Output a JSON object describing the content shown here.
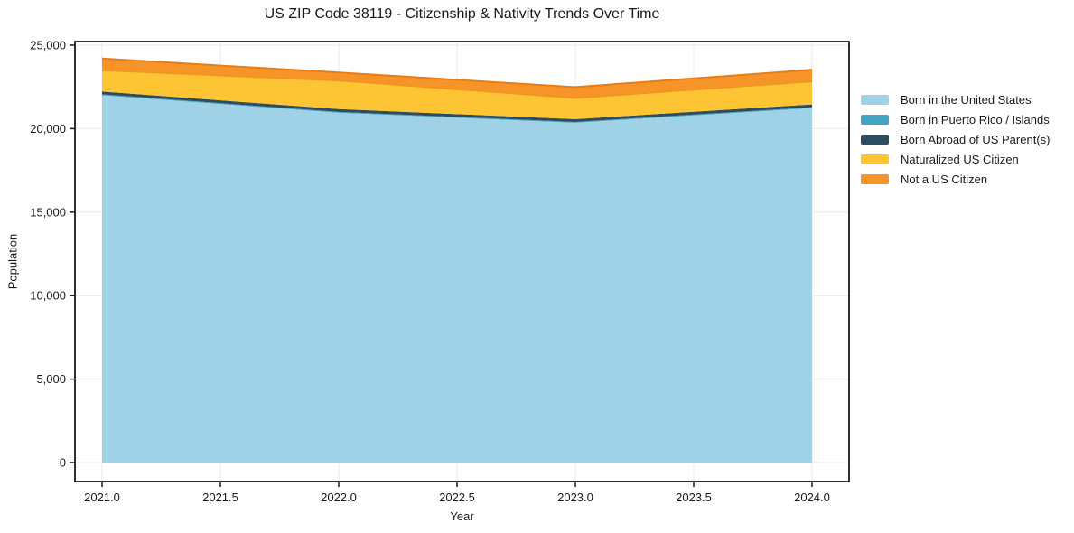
{
  "title": "US ZIP Code 38119 - Citizenship & Nativity Trends Over Time",
  "chart_data": {
    "type": "area",
    "stacked": true,
    "title": "US ZIP Code 38119 - Citizenship & Nativity Trends Over Time",
    "xlabel": "Year",
    "ylabel": "Population",
    "x": [
      2021,
      2022,
      2023,
      2024
    ],
    "x_tick_values": [
      2021.0,
      2021.5,
      2022.0,
      2022.5,
      2023.0,
      2023.5,
      2024.0
    ],
    "x_tick_labels": [
      "2021.0",
      "2021.5",
      "2022.0",
      "2022.5",
      "2023.0",
      "2023.5",
      "2024.0"
    ],
    "y_tick_values": [
      0,
      5000,
      10000,
      15000,
      20000,
      25000
    ],
    "y_tick_labels": [
      "0",
      "5,000",
      "10,000",
      "15,000",
      "20,000",
      "25,000"
    ],
    "ylim": [
      -1150,
      25250
    ],
    "xlim": [
      2020.885,
      2024.157
    ],
    "grid": true,
    "legend_position": "right",
    "series": [
      {
        "name": "Born in the United States",
        "color": "#a0d2e7",
        "values": [
          22000,
          20950,
          20350,
          21230
        ]
      },
      {
        "name": "Born in Puerto Rico / Islands",
        "color": "#46a5c2",
        "values": [
          50,
          50,
          50,
          50
        ]
      },
      {
        "name": "Born Abroad of US Parent(s)",
        "color": "#2c4d60",
        "values": [
          170,
          170,
          170,
          170
        ]
      },
      {
        "name": "Naturalized US Citizen",
        "color": "#fdc433",
        "values": [
          1270,
          1700,
          1260,
          1370
        ]
      },
      {
        "name": "Not a US Citizen",
        "color": "#f79428",
        "values": [
          710,
          490,
          660,
          710
        ]
      }
    ],
    "colors": {
      "grid": "#e8e8e8",
      "spine": "#1a1a1a",
      "seam_orange_top": "#e87d18",
      "seam_yellow_top": "#f0941f"
    }
  }
}
